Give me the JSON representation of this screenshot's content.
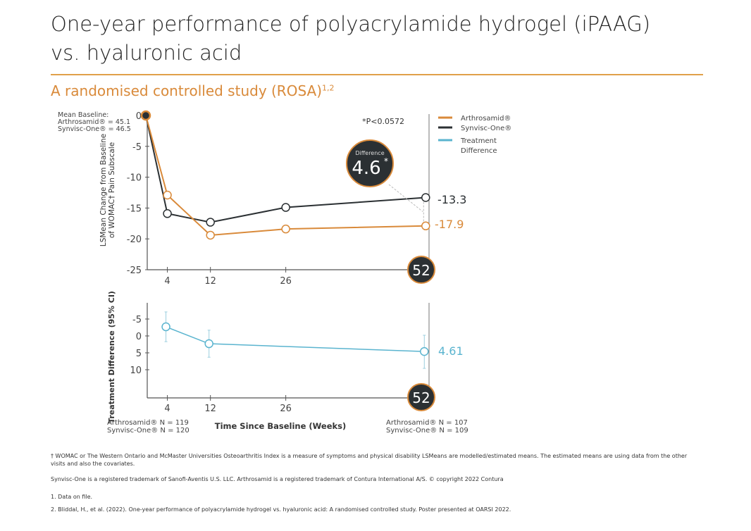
{
  "header": {
    "title_line1": "One-year performance of polyacrylamide hydrogel (iPAAG)",
    "title_line2": "vs. hyaluronic acid",
    "subtitle": "A randomised controlled study (ROSA)",
    "subtitle_refs": "1,2"
  },
  "colors": {
    "arthrosamid": "#d98a3a",
    "synvisc": "#2b3033",
    "difference": "#5ab4cf",
    "accent_rule": "#e0a04a"
  },
  "baseline_note": [
    "Mean Baseline:",
    "Arthrosamid® = 45.1",
    "Synvisc-One® = 46.5"
  ],
  "p_value": "*P<0.0572",
  "difference_badge": {
    "label": "Difference",
    "value": "4.6",
    "mark": "*"
  },
  "legend": [
    {
      "name": "Arthrosamid®",
      "color": "#d98a3a"
    },
    {
      "name": "Synvisc-One®",
      "color": "#2b3033"
    },
    {
      "name": "Treatment Difference",
      "color": "#5ab4cf"
    }
  ],
  "chart_data": [
    {
      "type": "line",
      "ylabel": "LSMean Change from Baseline of WOMAC† Pain Subscale",
      "xlabel": "",
      "x_ticks": [
        4,
        12,
        26,
        52
      ],
      "y_ticks": [
        0,
        -5,
        -10,
        -15,
        -20,
        -25
      ],
      "ylim": [
        -25,
        0
      ],
      "xlim": [
        0,
        52
      ],
      "series": [
        {
          "name": "Arthrosamid®",
          "x": [
            0,
            4,
            12,
            26,
            52
          ],
          "y": [
            0,
            -12.9,
            -19.4,
            -18.4,
            -17.9
          ]
        },
        {
          "name": "Synvisc-One®",
          "x": [
            0,
            4,
            12,
            26,
            52
          ],
          "y": [
            0,
            -15.9,
            -17.3,
            -14.9,
            -13.3
          ]
        }
      ],
      "end_labels": [
        "-13.3",
        "-17.9"
      ],
      "highlight_tick": "52"
    },
    {
      "type": "line",
      "ylabel": "Treatment Difference (95% CI)",
      "xlabel": "Time Since Baseline (Weeks)",
      "x_ticks": [
        4,
        12,
        26,
        52
      ],
      "y_ticks": [
        -5,
        0,
        5,
        10
      ],
      "y_inverted": true,
      "ylim": [
        -10,
        18
      ],
      "series": [
        {
          "name": "Treatment Difference",
          "x": [
            4,
            12,
            52
          ],
          "y": [
            -2.7,
            2.3,
            4.61
          ],
          "ci_low": [
            -7.1,
            -1.7,
            -0.2
          ],
          "ci_high": [
            1.7,
            6.3,
            9.6
          ]
        }
      ],
      "end_label": "4.61",
      "highlight_tick": "52"
    }
  ],
  "n_left": [
    "Arthrosamid® N = 119",
    "Synvisc-One® N = 120"
  ],
  "n_right": [
    "Arthrosamid® N = 107",
    "Synvisc-One® N = 109"
  ],
  "footnotes": [
    "† WOMAC or The Western Ontario and McMaster Universities Osteoarthritis Index is a measure of symptoms and physical disability LSMeans are modelled/estimated means. The estimated means are using data from the other visits and also the covariates.",
    "Synvisc-One is a registered trademark of Sanofi-Aventis U.S. LLC. Arthrosamid is a registered trademark of Contura International A/S. © copyright 2022 Contura",
    "1. Data on file.",
    "2. Bliddal, H., et al. (2022). One-year performance of polyacrylamide hydrogel vs. hyaluronic acid: A randomised controlled study. Poster presented at OARSI 2022."
  ]
}
